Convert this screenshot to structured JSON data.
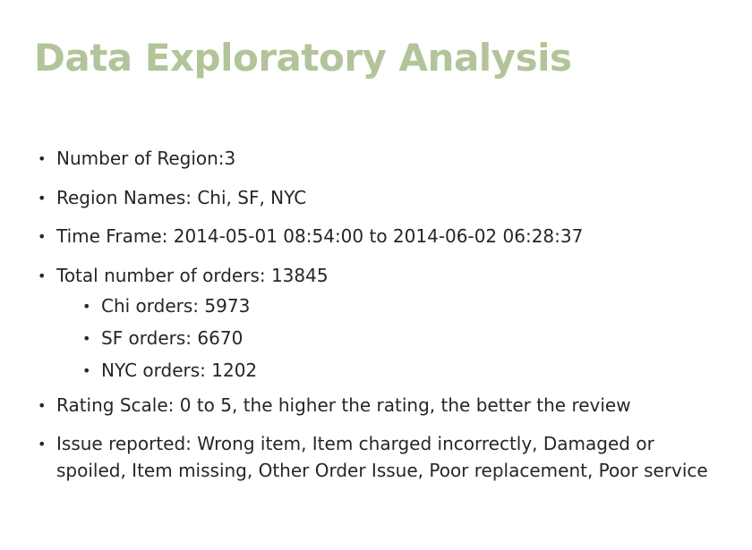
{
  "slide": {
    "title": "Data Exploratory Analysis",
    "title_color": "#b2c49a",
    "bullet_glyph": "•",
    "bullets": [
      {
        "text": "Number of Region:3"
      },
      {
        "text": "Region Names: Chi, SF, NYC"
      },
      {
        "text": "Time Frame: 2014-05-01 08:54:00 to 2014-06-02 06:28:37"
      },
      {
        "text": "Total number of orders: 13845",
        "sub": [
          {
            "text": "Chi orders: 5973"
          },
          {
            "text": "SF orders: 6670"
          },
          {
            "text": "NYC orders: 1202"
          }
        ]
      },
      {
        "text": "Rating Scale: 0 to 5, the higher the rating, the better the review"
      },
      {
        "text": "Issue reported: Wrong item, Item charged incorrectly, Damaged or spoiled, Item missing, Other Order Issue, Poor replacement, Poor service"
      }
    ]
  }
}
